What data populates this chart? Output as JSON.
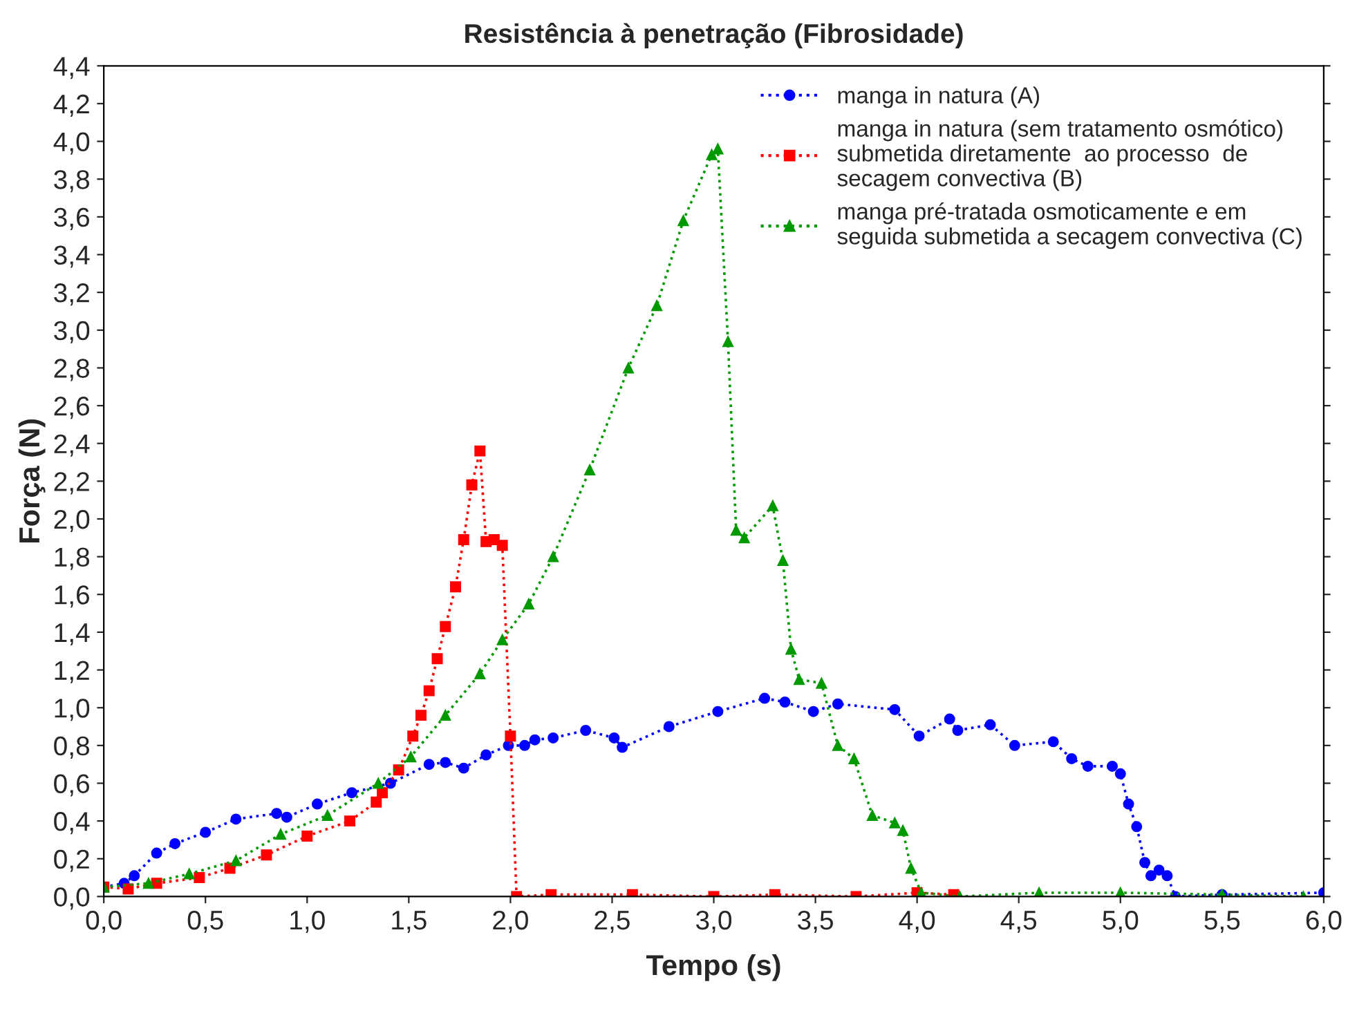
{
  "chart_data": {
    "type": "line",
    "title": "Resistência à penetração (Fibrosidade)",
    "xlabel": "Tempo (s)",
    "ylabel": "Força (N)",
    "xlim": [
      0,
      6
    ],
    "ylim": [
      0,
      4.4
    ],
    "xticks": [
      {
        "value": 0,
        "label": "0,0"
      },
      {
        "value": 0.5,
        "label": "0,5"
      },
      {
        "value": 1,
        "label": "1,0"
      },
      {
        "value": 1.5,
        "label": "1,5"
      },
      {
        "value": 2,
        "label": "2,0"
      },
      {
        "value": 2.5,
        "label": "2,5"
      },
      {
        "value": 3,
        "label": "3,0"
      },
      {
        "value": 3.5,
        "label": "3,5"
      },
      {
        "value": 4,
        "label": "4,0"
      },
      {
        "value": 4.5,
        "label": "4,5"
      },
      {
        "value": 5,
        "label": "5,0"
      },
      {
        "value": 5.5,
        "label": "5,5"
      },
      {
        "value": 6,
        "label": "6,0"
      }
    ],
    "yticks": [
      {
        "value": 0,
        "label": "0,0"
      },
      {
        "value": 0.2,
        "label": "0,2"
      },
      {
        "value": 0.4,
        "label": "0,4"
      },
      {
        "value": 0.6,
        "label": "0,6"
      },
      {
        "value": 0.8,
        "label": "0,8"
      },
      {
        "value": 1,
        "label": "1,0"
      },
      {
        "value": 1.2,
        "label": "1,2"
      },
      {
        "value": 1.4,
        "label": "1,4"
      },
      {
        "value": 1.6,
        "label": "1,6"
      },
      {
        "value": 1.8,
        "label": "1,8"
      },
      {
        "value": 2,
        "label": "2,0"
      },
      {
        "value": 2.2,
        "label": "2,2"
      },
      {
        "value": 2.4,
        "label": "2,4"
      },
      {
        "value": 2.6,
        "label": "2,6"
      },
      {
        "value": 2.8,
        "label": "2,8"
      },
      {
        "value": 3,
        "label": "3,0"
      },
      {
        "value": 3.2,
        "label": "3,2"
      },
      {
        "value": 3.4,
        "label": "3,4"
      },
      {
        "value": 3.6,
        "label": "3,6"
      },
      {
        "value": 3.8,
        "label": "3,8"
      },
      {
        "value": 4,
        "label": "4,0"
      },
      {
        "value": 4.2,
        "label": "4,2"
      },
      {
        "value": 4.4,
        "label": "4,4"
      }
    ],
    "grid": false,
    "legend": "top right",
    "line_style": "dotted",
    "series": [
      {
        "name": "manga in natura (A)",
        "color": "#0000ff",
        "marker": "circle",
        "x": [
          0.0,
          0.1,
          0.15,
          0.26,
          0.35,
          0.5,
          0.65,
          0.85,
          0.9,
          1.05,
          1.22,
          1.41,
          1.6,
          1.68,
          1.77,
          1.88,
          1.99,
          2.07,
          2.12,
          2.21,
          2.37,
          2.51,
          2.55,
          2.78,
          3.02,
          3.25,
          3.35,
          3.49,
          3.61,
          3.89,
          4.01,
          4.16,
          4.2,
          4.36,
          4.48,
          4.67,
          4.76,
          4.84,
          4.96,
          5.0,
          5.04,
          5.08,
          5.12,
          5.15,
          5.19,
          5.23,
          5.27,
          5.5,
          6.0
        ],
        "values": [
          0.05,
          0.07,
          0.11,
          0.23,
          0.28,
          0.34,
          0.41,
          0.44,
          0.42,
          0.49,
          0.55,
          0.6,
          0.7,
          0.71,
          0.68,
          0.75,
          0.8,
          0.8,
          0.83,
          0.84,
          0.88,
          0.84,
          0.79,
          0.9,
          0.98,
          1.05,
          1.03,
          0.98,
          1.02,
          0.99,
          0.85,
          0.94,
          0.88,
          0.91,
          0.8,
          0.82,
          0.73,
          0.69,
          0.69,
          0.65,
          0.49,
          0.37,
          0.18,
          0.11,
          0.14,
          0.11,
          0.0,
          0.01,
          0.02
        ]
      },
      {
        "name": "manga in natura (sem tratamento osmótico)\nsubmetida diretamente  ao processo  de\nsecagem convectiva (B)",
        "color": "#ff0000",
        "marker": "square",
        "x": [
          0.0,
          0.12,
          0.26,
          0.47,
          0.62,
          0.8,
          1.0,
          1.21,
          1.34,
          1.37,
          1.45,
          1.52,
          1.56,
          1.6,
          1.64,
          1.68,
          1.73,
          1.77,
          1.81,
          1.85,
          1.88,
          1.92,
          1.96,
          2.0,
          2.03,
          2.2,
          2.6,
          3.0,
          3.3,
          3.7,
          4.0,
          4.18
        ],
        "values": [
          0.05,
          0.04,
          0.07,
          0.1,
          0.15,
          0.22,
          0.32,
          0.4,
          0.5,
          0.55,
          0.67,
          0.85,
          0.96,
          1.09,
          1.26,
          1.43,
          1.64,
          1.89,
          2.18,
          2.36,
          1.88,
          1.89,
          1.86,
          0.85,
          0.0,
          0.01,
          0.01,
          0.0,
          0.01,
          0.0,
          0.02,
          0.01
        ]
      },
      {
        "name": "manga pré-tratada osmoticamente e em\nseguida submetida a secagem convectiva (C)",
        "color": "#009900",
        "marker": "triangle",
        "x": [
          0.0,
          0.22,
          0.42,
          0.65,
          0.87,
          1.1,
          1.35,
          1.51,
          1.68,
          1.85,
          1.96,
          2.09,
          2.21,
          2.39,
          2.58,
          2.72,
          2.85,
          2.99,
          3.02,
          3.07,
          3.11,
          3.15,
          3.29,
          3.34,
          3.38,
          3.42,
          3.53,
          3.61,
          3.69,
          3.78,
          3.89,
          3.93,
          3.97,
          4.02,
          4.21,
          4.6,
          5.0,
          5.5,
          5.9
        ],
        "values": [
          0.05,
          0.07,
          0.12,
          0.19,
          0.33,
          0.43,
          0.6,
          0.74,
          0.96,
          1.18,
          1.36,
          1.55,
          1.8,
          2.26,
          2.8,
          3.13,
          3.58,
          3.93,
          3.96,
          2.94,
          1.94,
          1.9,
          2.07,
          1.78,
          1.31,
          1.15,
          1.13,
          0.8,
          0.73,
          0.43,
          0.39,
          0.35,
          0.15,
          0.02,
          0.0,
          0.02,
          0.02,
          0.01,
          0.0
        ]
      }
    ]
  }
}
